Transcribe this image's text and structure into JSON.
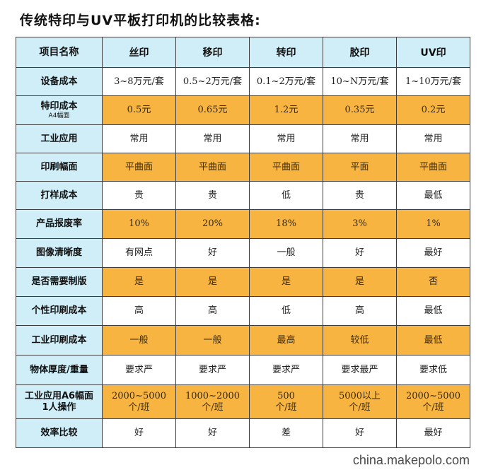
{
  "title": "传统特印与UV平板打印机的比较表格:",
  "table": {
    "headers": [
      "项目名称",
      "丝印",
      "移印",
      "转印",
      "胶印",
      "UV印"
    ],
    "rows": [
      {
        "label": "设备成本",
        "sub": "",
        "cells": [
          "3~8万元/套",
          "0.5~2万元/套",
          "0.1~2万元/套",
          "10~N万元/套",
          "1~10万元/套"
        ]
      },
      {
        "label": "特印成本",
        "sub": "A4幅面",
        "cells": [
          "0.5元",
          "0.65元",
          "1.2元",
          "0.35元",
          "0.2元"
        ]
      },
      {
        "label": "工业应用",
        "sub": "",
        "cells": [
          "常用",
          "常用",
          "常用",
          "常用",
          "常用"
        ]
      },
      {
        "label": "印刷幅面",
        "sub": "",
        "cells": [
          "平曲面",
          "平曲面",
          "平曲面",
          "平面",
          "平曲面"
        ]
      },
      {
        "label": "打样成本",
        "sub": "",
        "cells": [
          "贵",
          "贵",
          "低",
          "贵",
          "最低"
        ]
      },
      {
        "label": "产品报废率",
        "sub": "",
        "cells": [
          "10%",
          "20%",
          "18%",
          "3%",
          "1%"
        ]
      },
      {
        "label": "图像清晰度",
        "sub": "",
        "cells": [
          "有网点",
          "好",
          "一般",
          "好",
          "最好"
        ]
      },
      {
        "label": "是否需要制版",
        "sub": "",
        "cells": [
          "是",
          "是",
          "是",
          "是",
          "否"
        ]
      },
      {
        "label": "个性印刷成本",
        "sub": "",
        "cells": [
          "高",
          "高",
          "低",
          "高",
          "最低"
        ]
      },
      {
        "label": "工业印刷成本",
        "sub": "",
        "cells": [
          "一般",
          "一般",
          "最高",
          "较低",
          "最低"
        ]
      },
      {
        "label": "物体厚度/重量",
        "sub": "",
        "cells": [
          "要求严",
          "要求严",
          "要求严",
          "要求最严",
          "要求低"
        ]
      },
      {
        "label": "工业应用A6幅面\n1人操作",
        "sub": "",
        "cells": [
          "2000~5000\n个/班",
          "1000~2000\n个/班",
          "500\n个/班",
          "5000以上\n个/班",
          "2000~5000\n个/班"
        ]
      },
      {
        "label": "效率比较",
        "sub": "",
        "cells": [
          "好",
          "好",
          "差",
          "好",
          "最好"
        ]
      }
    ]
  },
  "watermark": "china.makepolo.com",
  "colors": {
    "header_bg": "#cfeef8",
    "highlight_row": "#f7b440",
    "border": "#3d3d3d"
  }
}
